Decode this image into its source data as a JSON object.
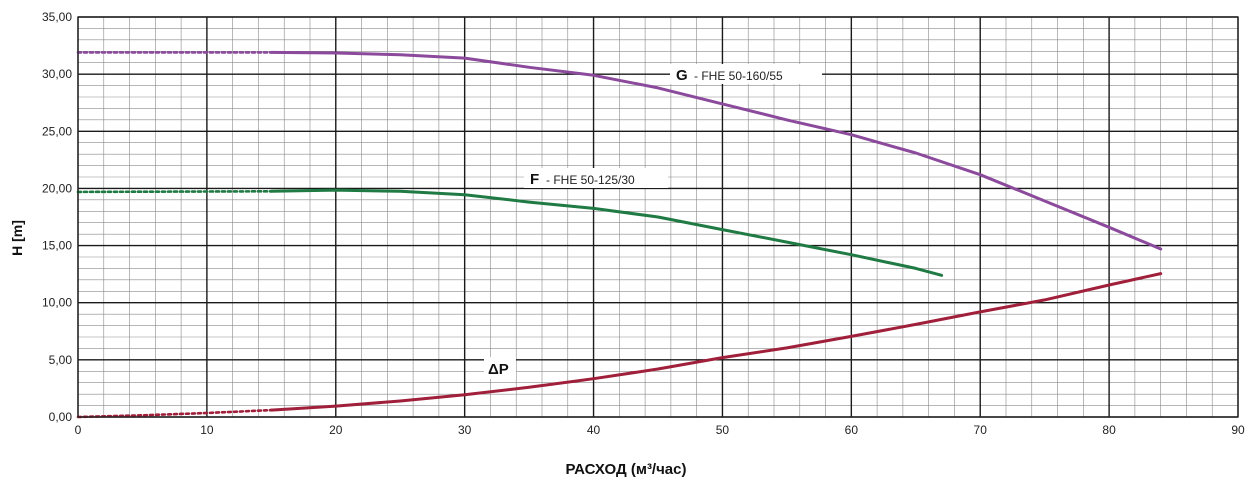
{
  "chart_data": {
    "type": "line",
    "xlabel": "РАСХОД (м³/час)",
    "ylabel": "H [m]",
    "xlim": [
      0,
      90
    ],
    "ylim": [
      0,
      35
    ],
    "x_ticks": [
      "0",
      "10",
      "20",
      "30",
      "40",
      "50",
      "60",
      "70",
      "80",
      "90"
    ],
    "y_ticks": [
      "0,00",
      "5,00",
      "10,00",
      "15,00",
      "20,00",
      "25,00",
      "30,00",
      "35,00"
    ],
    "grid": true,
    "series": [
      {
        "name": "G",
        "label_code": "G",
        "label_model": "- FHE 50-160/55",
        "color": "#8b4a9c",
        "dashed_until_x": 15,
        "points": [
          [
            0,
            31.9
          ],
          [
            15,
            31.9
          ],
          [
            20,
            31.85
          ],
          [
            25,
            31.7
          ],
          [
            30,
            31.4
          ],
          [
            35,
            30.6
          ],
          [
            40,
            29.9
          ],
          [
            45,
            28.8
          ],
          [
            50,
            27.4
          ],
          [
            55,
            26.0
          ],
          [
            60,
            24.7
          ],
          [
            65,
            23.1
          ],
          [
            70,
            21.2
          ],
          [
            75,
            18.9
          ],
          [
            80,
            16.6
          ],
          [
            84,
            14.7
          ]
        ]
      },
      {
        "name": "F",
        "label_code": "F",
        "label_model": "- FHE 50-125/30",
        "color": "#1f7a43",
        "dashed_until_x": 15,
        "points": [
          [
            0,
            19.7
          ],
          [
            15,
            19.75
          ],
          [
            20,
            19.85
          ],
          [
            25,
            19.75
          ],
          [
            30,
            19.45
          ],
          [
            35,
            18.8
          ],
          [
            40,
            18.25
          ],
          [
            45,
            17.5
          ],
          [
            50,
            16.4
          ],
          [
            55,
            15.3
          ],
          [
            60,
            14.2
          ],
          [
            65,
            13.0
          ],
          [
            67,
            12.4
          ]
        ]
      },
      {
        "name": "ΔP",
        "label_code": "ΔP",
        "label_model": "",
        "color": "#a01f3a",
        "dashed_until_x": 15,
        "points": [
          [
            0,
            0.0
          ],
          [
            5,
            0.15
          ],
          [
            10,
            0.35
          ],
          [
            15,
            0.6
          ],
          [
            20,
            0.95
          ],
          [
            25,
            1.4
          ],
          [
            30,
            1.95
          ],
          [
            35,
            2.6
          ],
          [
            40,
            3.35
          ],
          [
            45,
            4.2
          ],
          [
            50,
            5.2
          ],
          [
            55,
            6.05
          ],
          [
            60,
            7.05
          ],
          [
            65,
            8.1
          ],
          [
            70,
            9.2
          ],
          [
            75,
            10.25
          ],
          [
            80,
            11.55
          ],
          [
            84,
            12.55
          ]
        ]
      }
    ]
  }
}
